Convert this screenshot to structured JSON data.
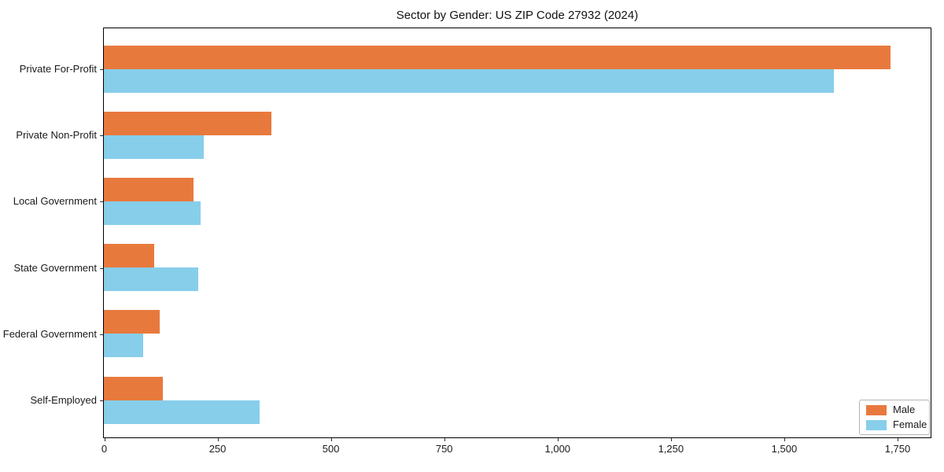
{
  "chart_data": {
    "type": "bar",
    "orientation": "horizontal",
    "title": "Sector by Gender: US ZIP Code 27932 (2024)",
    "categories": [
      "Private For-Profit",
      "Private Non-Profit",
      "Local Government",
      "State Government",
      "Federal Government",
      "Self-Employed"
    ],
    "series": [
      {
        "name": "Male",
        "color": "#E8793D",
        "values": [
          1735,
          370,
          197,
          111,
          124,
          130
        ]
      },
      {
        "name": "Female",
        "color": "#87CEEB",
        "values": [
          1610,
          220,
          213,
          208,
          87,
          343
        ]
      }
    ],
    "xlim": [
      0,
      1822
    ],
    "x_ticks": [
      0,
      250,
      500,
      750,
      1000,
      1250,
      1500,
      1750
    ],
    "x_tick_labels": [
      "0",
      "250",
      "500",
      "750",
      "1,000",
      "1,250",
      "1,500",
      "1,750"
    ],
    "xlabel": "",
    "ylabel": "",
    "grid": false,
    "legend_position": "lower right",
    "background_color": "#ffffff",
    "spine_color": "#000000"
  },
  "legend": {
    "items": [
      {
        "label": "Male",
        "color": "#E8793D"
      },
      {
        "label": "Female",
        "color": "#87CEEB"
      }
    ]
  }
}
